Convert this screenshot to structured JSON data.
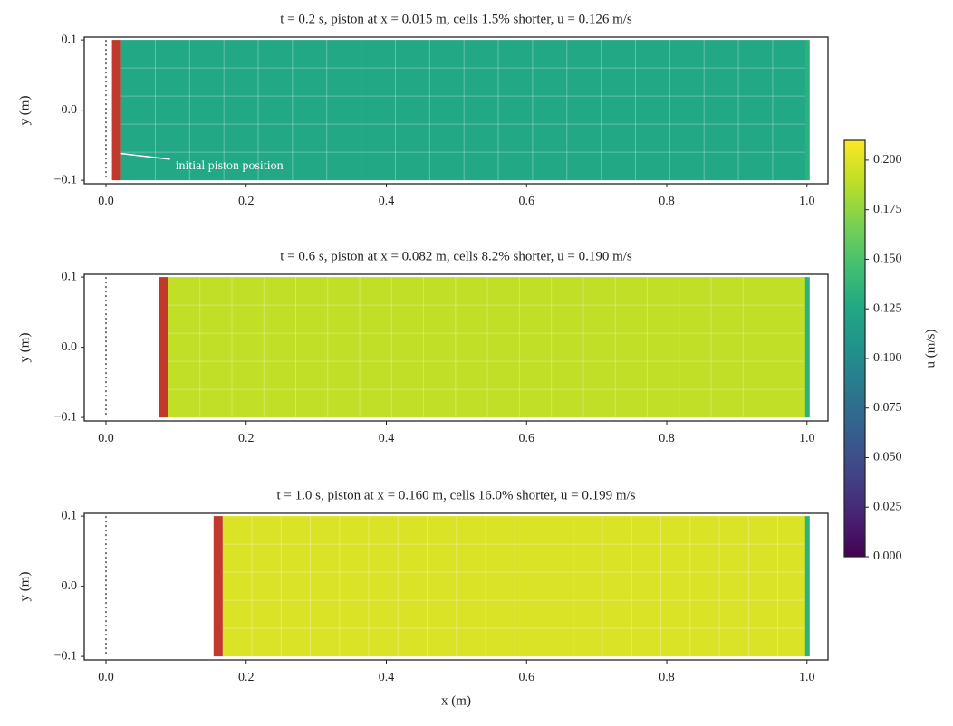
{
  "chart_data": [
    {
      "type": "mesh",
      "title": "t = 0.2 s, piston at x = 0.015 m, cells 1.5% shorter, u = 0.126 m/s",
      "piston_x": 0.015,
      "u": 0.126,
      "ylabel": "y (m)",
      "annotation": "initial piston position",
      "xlim": [
        -0.031,
        1.03
      ],
      "ylim": [
        -0.105,
        0.104
      ],
      "xticks": [
        {
          "value": 0,
          "label": "0.0"
        },
        0.2,
        0.4,
        0.6,
        0.8,
        {
          "value": 1,
          "label": "1.0"
        }
      ],
      "yticks": [
        {
          "value": -0.1,
          "label": "−0.1"
        },
        {
          "value": 0,
          "label": "0.0"
        },
        0.1
      ]
    },
    {
      "type": "mesh",
      "title": "t = 0.6 s, piston at x = 0.082 m, cells 8.2% shorter, u = 0.190 m/s",
      "piston_x": 0.082,
      "u": 0.19,
      "ylabel": "y (m)",
      "xlim": [
        -0.031,
        1.03
      ],
      "ylim": [
        -0.105,
        0.104
      ],
      "xticks": [
        {
          "value": 0,
          "label": "0.0"
        },
        0.2,
        0.4,
        0.6,
        0.8,
        {
          "value": 1,
          "label": "1.0"
        }
      ],
      "yticks": [
        {
          "value": -0.1,
          "label": "−0.1"
        },
        {
          "value": 0,
          "label": "0.0"
        },
        0.1
      ]
    },
    {
      "type": "mesh",
      "title": "t = 1.0 s, piston at x = 0.160 m, cells 16.0% shorter, u = 0.199 m/s",
      "piston_x": 0.16,
      "u": 0.199,
      "ylabel": "y (m)",
      "xlabel": "x (m)",
      "xlim": [
        -0.031,
        1.03
      ],
      "ylim": [
        -0.105,
        0.104
      ],
      "xticks": [
        {
          "value": 0,
          "label": "0.0"
        },
        0.2,
        0.4,
        0.6,
        0.8,
        {
          "value": 1,
          "label": "1.0"
        }
      ],
      "yticks": [
        {
          "value": -0.1,
          "label": "−0.1"
        },
        {
          "value": 0,
          "label": "0.0"
        },
        0.1
      ]
    },
    {
      "type": "colorbar",
      "label": "u (m/s)",
      "colormap": "viridis",
      "ylim": [
        0,
        0.21
      ],
      "yticks": [
        {
          "value": 0,
          "label": "0.000"
        },
        {
          "value": 0.025,
          "label": "0.025"
        },
        {
          "value": 0.05,
          "label": "0.050"
        },
        {
          "value": 0.075,
          "label": "0.075"
        },
        {
          "value": 0.1,
          "label": "0.100"
        },
        {
          "value": 0.125,
          "label": "0.125"
        },
        {
          "value": 0.15,
          "label": "0.150"
        },
        {
          "value": 0.175,
          "label": "0.175"
        },
        {
          "value": 0.2,
          "label": "0.200"
        }
      ]
    }
  ]
}
